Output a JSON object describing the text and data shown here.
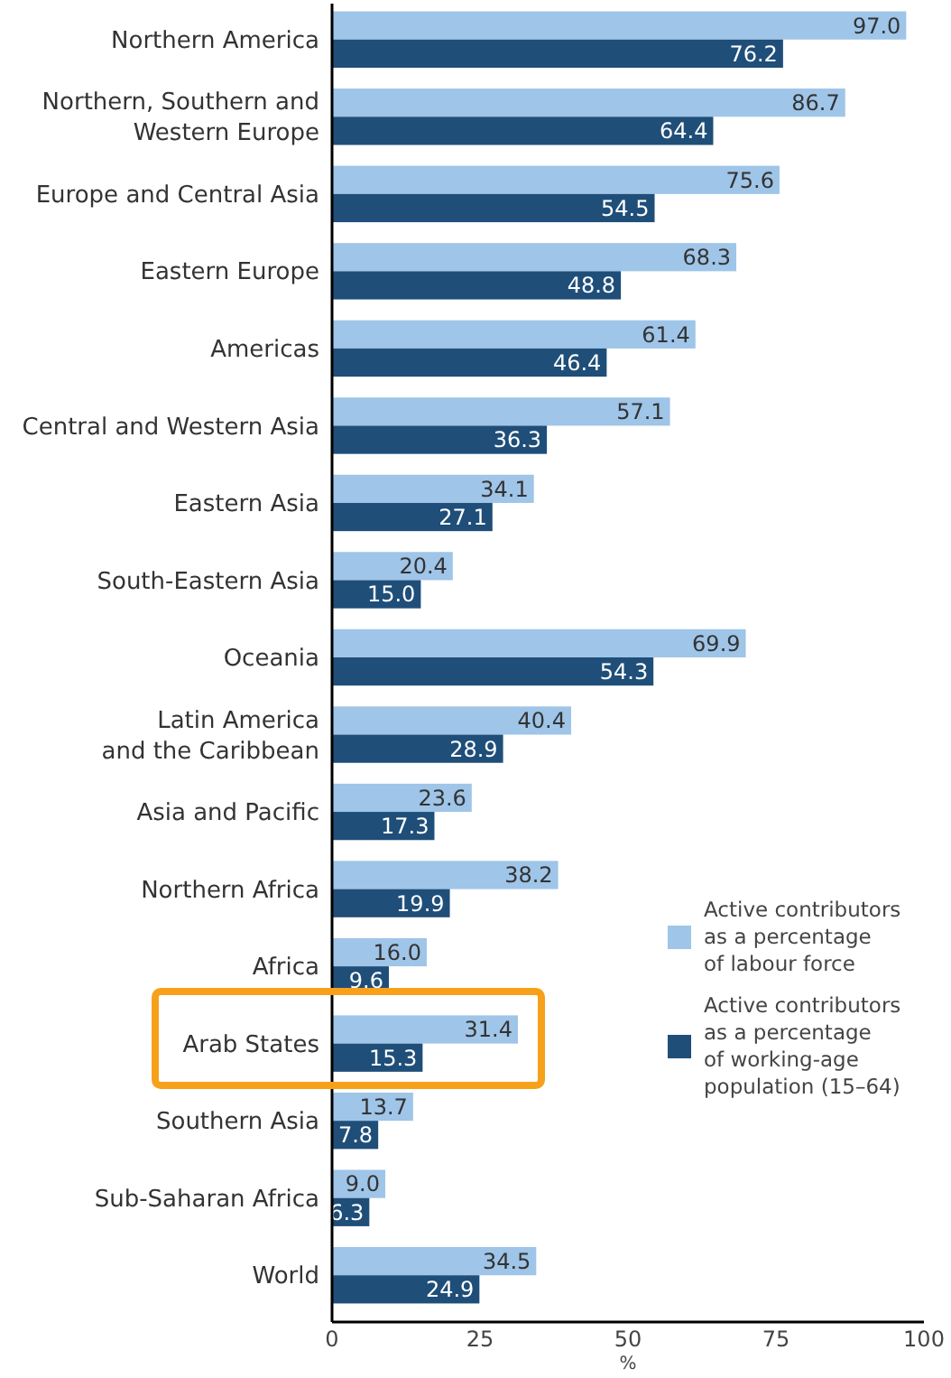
{
  "chart_data": {
    "type": "bar",
    "orientation": "horizontal",
    "xlabel": "%",
    "categories": [
      "Northern America",
      "Northern, Southern and\nWestern Europe",
      "Europe and Central Asia",
      "Eastern Europe",
      "Americas",
      "Central and Western Asia",
      "Eastern Asia",
      "South-Eastern Asia",
      "Oceania",
      "Latin America\nand the Caribbean",
      "Asia and Pacific",
      "Northern Africa",
      "Africa",
      "Arab States",
      "Southern Asia",
      "Sub-Saharan Africa",
      "World"
    ],
    "series": [
      {
        "name": "Active contributors\nas a percentage\nof labour force",
        "color": "#9fc5e8",
        "values": [
          97.0,
          86.7,
          75.6,
          68.3,
          61.4,
          57.1,
          34.1,
          20.4,
          69.9,
          40.4,
          23.6,
          38.2,
          16.0,
          31.4,
          13.7,
          9.0,
          34.5
        ],
        "value_labels": [
          "97.0",
          "86.7",
          "75.6",
          "68.3",
          "61.4",
          "57.1",
          "34.1",
          "20.4",
          "69.9",
          "40.4",
          "23.6",
          "38.2",
          "16.0",
          "31.4",
          "13.7",
          "9.0",
          "34.5"
        ]
      },
      {
        "name": "Active contributors\nas a percentage\nof working-age\npopulation (15–64)",
        "color": "#1f4e79",
        "values": [
          76.2,
          64.4,
          54.5,
          48.8,
          46.4,
          36.3,
          27.1,
          15.0,
          54.3,
          28.9,
          17.3,
          19.9,
          9.6,
          15.3,
          7.8,
          6.3,
          24.9
        ],
        "value_labels": [
          "76.2",
          "64.4",
          "54.5",
          "48.8",
          "46.4",
          "36.3",
          "27.1",
          "15.0",
          "54.3",
          "28.9",
          "17.3",
          "19.9",
          "9.6",
          "15.3",
          "7.8",
          "6.3",
          "24.9"
        ]
      }
    ],
    "xlim": [
      0,
      100
    ],
    "xticks": [
      0,
      25,
      50,
      75,
      100
    ],
    "grid": false,
    "legend": "bottom right"
  }
}
